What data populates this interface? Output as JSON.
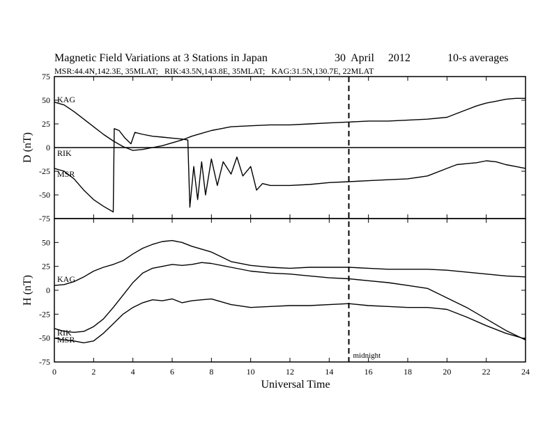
{
  "chart_data": {
    "type": "line",
    "title": "Magnetic Field Variations at 3 Stations in Japan",
    "date": "30  April     2012",
    "averaging": "10-s averages",
    "subtitle": "MSR:44.4N,142.3E, 35MLAT;   RIK:43.5N,143.8E, 35MLAT;   KAG:31.5N,130.7E, 22MLAT",
    "xlabel": "Universal Time",
    "xlim": [
      0,
      24
    ],
    "x_ticks": [
      "0",
      "2",
      "4",
      "6",
      "8",
      "10",
      "12",
      "14",
      "16",
      "18",
      "20",
      "22",
      "24"
    ],
    "midnight_marker": {
      "x": 15,
      "label": "midnight"
    },
    "panels": [
      {
        "ylabel": "D (nT)",
        "ylim": [
          -75,
          75
        ],
        "y_ticks": [
          "75",
          "50",
          "25",
          "0",
          "-25",
          "-50",
          "-75"
        ],
        "station_labels": [
          "KAG",
          "RIK",
          "MSR"
        ],
        "series": [
          {
            "name": "KAG",
            "x": [
              0,
              0.5,
              1,
              1.5,
              2,
              2.5,
              3,
              3.5,
              4,
              4.5,
              5,
              5.5,
              6,
              6.5,
              7,
              7.5,
              8,
              8.5,
              9,
              10,
              11,
              12,
              13,
              14,
              15,
              16,
              17,
              18,
              19,
              20,
              20.5,
              21,
              21.5,
              22,
              22.5,
              23,
              23.5,
              24
            ],
            "y": [
              48,
              45,
              38,
              30,
              22,
              14,
              7,
              1,
              -3,
              -2,
              0,
              2,
              5,
              8,
              12,
              15,
              18,
              20,
              22,
              23,
              24,
              24,
              25,
              26,
              27,
              28,
              28,
              29,
              30,
              32,
              36,
              40,
              44,
              47,
              49,
              51,
              52,
              52
            ]
          },
          {
            "name": "RIK",
            "x": [
              0,
              24
            ],
            "y": [
              0,
              0
            ]
          },
          {
            "name": "MSR",
            "x": [
              0,
              0.5,
              1,
              1.5,
              2,
              2.5,
              3,
              3.05,
              3.3,
              3.6,
              3.9,
              4.1,
              4.5,
              5,
              5.5,
              6,
              6.5,
              6.8,
              6.9,
              7.1,
              7.3,
              7.5,
              7.7,
              8,
              8.3,
              8.6,
              9,
              9.3,
              9.6,
              10,
              10.3,
              10.6,
              11,
              11.5,
              12,
              13,
              14,
              15,
              16,
              17,
              18,
              19,
              20,
              20.5,
              21,
              21.5,
              22,
              22.5,
              23,
              23.5,
              24
            ],
            "y": [
              -22,
              -25,
              -33,
              -45,
              -55,
              -62,
              -68,
              20,
              18,
              10,
              4,
              16,
              14,
              12,
              11,
              10,
              9,
              8,
              -63,
              -20,
              -55,
              -15,
              -50,
              -12,
              -40,
              -15,
              -28,
              -10,
              -30,
              -20,
              -45,
              -38,
              -40,
              -40,
              -40,
              -39,
              -37,
              -36,
              -35,
              -34,
              -33,
              -30,
              -22,
              -18,
              -17,
              -16,
              -14,
              -15,
              -18,
              -20,
              -22
            ]
          }
        ]
      },
      {
        "ylabel": "H (nT)",
        "ylim": [
          -75,
          75
        ],
        "y_ticks": [
          "75",
          "50",
          "25",
          "0",
          "-25",
          "-50",
          "-75"
        ],
        "station_labels": [
          "KAG",
          "RIK",
          "MSR"
        ],
        "series": [
          {
            "name": "KAG",
            "x": [
              0,
              0.5,
              1,
              1.5,
              2,
              2.5,
              3,
              3.5,
              4,
              4.5,
              5,
              5.5,
              6,
              6.5,
              7,
              7.5,
              8,
              8.5,
              9,
              10,
              11,
              12,
              13,
              14,
              15,
              16,
              17,
              18,
              19,
              20,
              21,
              22,
              23,
              24
            ],
            "y": [
              5,
              6,
              9,
              14,
              20,
              24,
              27,
              31,
              38,
              44,
              48,
              51,
              52,
              50,
              46,
              43,
              40,
              35,
              30,
              26,
              24,
              23,
              24,
              24,
              24,
              23,
              22,
              22,
              22,
              21,
              19,
              17,
              15,
              14
            ]
          },
          {
            "name": "RIK",
            "x": [
              0,
              0.5,
              1,
              1.5,
              2,
              2.5,
              3,
              3.5,
              4,
              4.5,
              5,
              5.5,
              6,
              6.5,
              7,
              7.5,
              8,
              9,
              10,
              11,
              12,
              13,
              14,
              15,
              16,
              17,
              18,
              19,
              19.5,
              20,
              21,
              22,
              23,
              24
            ],
            "y": [
              -40,
              -43,
              -44,
              -43,
              -38,
              -30,
              -18,
              -5,
              8,
              18,
              23,
              25,
              27,
              26,
              27,
              29,
              28,
              24,
              20,
              18,
              17,
              15,
              13,
              12,
              10,
              8,
              5,
              2,
              -3,
              -8,
              -18,
              -30,
              -42,
              -52
            ]
          },
          {
            "name": "MSR",
            "x": [
              0,
              0.5,
              1,
              1.5,
              2,
              2.5,
              3,
              3.5,
              4,
              4.5,
              5,
              5.5,
              6,
              6.5,
              7,
              7.5,
              8,
              9,
              10,
              11,
              12,
              13,
              14,
              15,
              16,
              17,
              18,
              19,
              20,
              21,
              22,
              23,
              24
            ],
            "y": [
              -50,
              -52,
              -53,
              -55,
              -53,
              -45,
              -35,
              -25,
              -18,
              -13,
              -10,
              -11,
              -9,
              -13,
              -11,
              -10,
              -9,
              -15,
              -18,
              -17,
              -16,
              -16,
              -15,
              -14,
              -16,
              -17,
              -18,
              -18,
              -20,
              -28,
              -37,
              -45,
              -51
            ]
          }
        ]
      }
    ]
  }
}
